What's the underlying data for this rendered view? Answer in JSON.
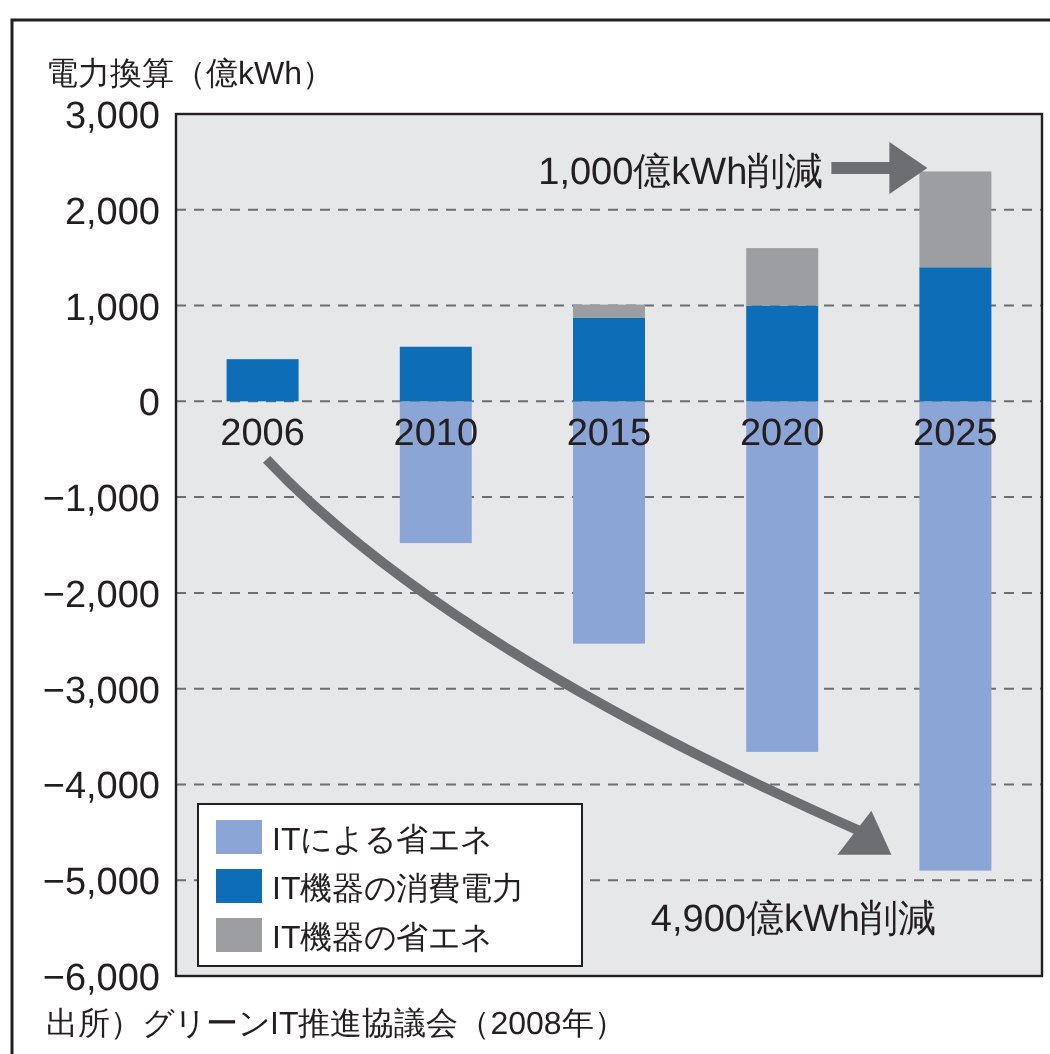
{
  "chart_data": {
    "type": "bar",
    "stacked": true,
    "ylabel": "電力換算（億kWh）",
    "categories": [
      "2006",
      "2010",
      "2015",
      "2020",
      "2025"
    ],
    "series": [
      {
        "name": "ITによる省エネ",
        "color": "#8ba6d6",
        "values": [
          0,
          -1480,
          -2530,
          -3660,
          -4900
        ]
      },
      {
        "name": "IT機器の消費電力",
        "color": "#0d6db7",
        "values": [
          440,
          570,
          870,
          1000,
          1400
        ]
      },
      {
        "name": "IT機器の省エネ",
        "color": "#9d9ea2",
        "values": [
          0,
          0,
          140,
          600,
          1000
        ]
      }
    ],
    "ylim": [
      -6000,
      3000
    ],
    "yticks": [
      {
        "value": -6000,
        "label": "−6,000"
      },
      {
        "value": -5000,
        "label": "−5,000"
      },
      {
        "value": -4000,
        "label": "−4,000"
      },
      {
        "value": -3000,
        "label": "−3,000"
      },
      {
        "value": -2000,
        "label": "−2,000"
      },
      {
        "value": -1000,
        "label": "−1,000"
      },
      {
        "value": 0,
        "label": "0"
      },
      {
        "value": 1000,
        "label": "1,000"
      },
      {
        "value": 2000,
        "label": "2,000"
      },
      {
        "value": 3000,
        "label": "3,000"
      }
    ],
    "grid": "y",
    "legend": "bottom left",
    "annotations": [
      "1,000億kWh削減",
      {
        "text": "4,900億kWh削減",
        "x": "2025",
        "y": -4900
      },
      "出所）グリーンIT推進協議会（2008年）"
    ]
  }
}
